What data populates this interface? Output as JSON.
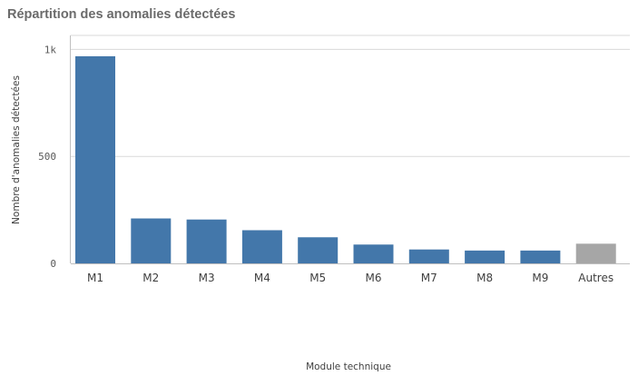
{
  "chart_data": {
    "type": "bar",
    "title": "Répartition des anomalies détectées",
    "xlabel": "Module technique",
    "ylabel": "Nombre d'anomalies détectées",
    "categories": [
      "M1",
      "M2",
      "M3",
      "M4",
      "M5",
      "M6",
      "M7",
      "M8",
      "M9",
      "Autres"
    ],
    "values": [
      968,
      210,
      205,
      155,
      122,
      88,
      65,
      60,
      60,
      92
    ],
    "ylim": [
      0,
      1030
    ],
    "yticks": [
      {
        "value": 0,
        "label": "0"
      },
      {
        "value": 500,
        "label": "500"
      },
      {
        "value": 1000,
        "label": "1k"
      }
    ],
    "grid": true,
    "colors": {
      "bar": "#4377aa",
      "other_bar": "#a6a6a6",
      "grid": "#d9d9d9",
      "axis": "#bfbfbf"
    },
    "highlight_category": "Autres"
  }
}
